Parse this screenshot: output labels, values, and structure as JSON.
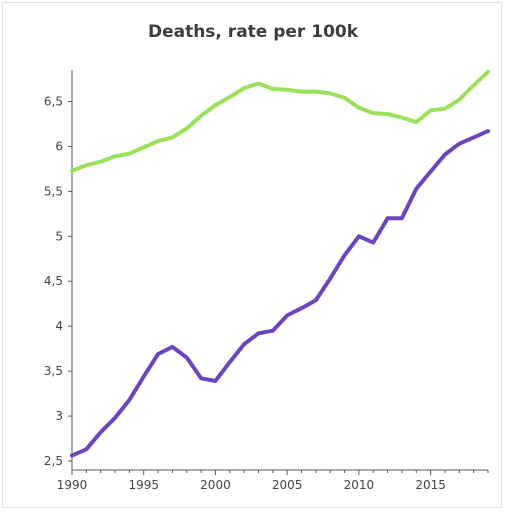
{
  "chart_data": {
    "type": "line",
    "title": "Deaths, rate per 100k",
    "xlabel": "",
    "ylabel": "",
    "xlim": [
      1990,
      2019
    ],
    "ylim": [
      2.4,
      6.85
    ],
    "x_ticks": [
      1990,
      1995,
      2000,
      2005,
      2010,
      2015
    ],
    "x_tick_labels": [
      "1990",
      "1995",
      "2000",
      "2005",
      "2010",
      "2015"
    ],
    "y_ticks": [
      2.5,
      3,
      3.5,
      4,
      4.5,
      5,
      5.5,
      6,
      6.5
    ],
    "y_tick_labels": [
      "2,5",
      "3",
      "3,5",
      "4",
      "4,5",
      "5",
      "5,5",
      "6",
      "6,5"
    ],
    "grid": false,
    "legend": "none",
    "x": [
      1990,
      1991,
      1992,
      1993,
      1994,
      1995,
      1996,
      1997,
      1998,
      1999,
      2000,
      2001,
      2002,
      2003,
      2004,
      2005,
      2006,
      2007,
      2008,
      2009,
      2010,
      2011,
      2012,
      2013,
      2014,
      2015,
      2016,
      2017,
      2018,
      2019
    ],
    "series": [
      {
        "color": "#9be05a",
        "values": [
          5.73,
          5.79,
          5.83,
          5.89,
          5.92,
          5.99,
          6.06,
          6.1,
          6.2,
          6.34,
          6.46,
          6.55,
          6.65,
          6.7,
          6.64,
          6.63,
          6.61,
          6.61,
          6.59,
          6.54,
          6.43,
          6.37,
          6.36,
          6.32,
          6.27,
          6.4,
          6.42,
          6.52,
          6.68,
          6.83
        ]
      },
      {
        "color": "#6a45bd",
        "values": [
          2.56,
          2.63,
          2.82,
          2.98,
          3.18,
          3.44,
          3.69,
          3.77,
          3.65,
          3.42,
          3.39,
          3.6,
          3.8,
          3.92,
          3.95,
          4.12,
          4.2,
          4.29,
          4.53,
          4.79,
          5.0,
          4.93,
          5.2,
          5.2,
          5.53,
          5.72,
          5.91,
          6.03,
          6.1,
          6.17
        ]
      }
    ]
  }
}
